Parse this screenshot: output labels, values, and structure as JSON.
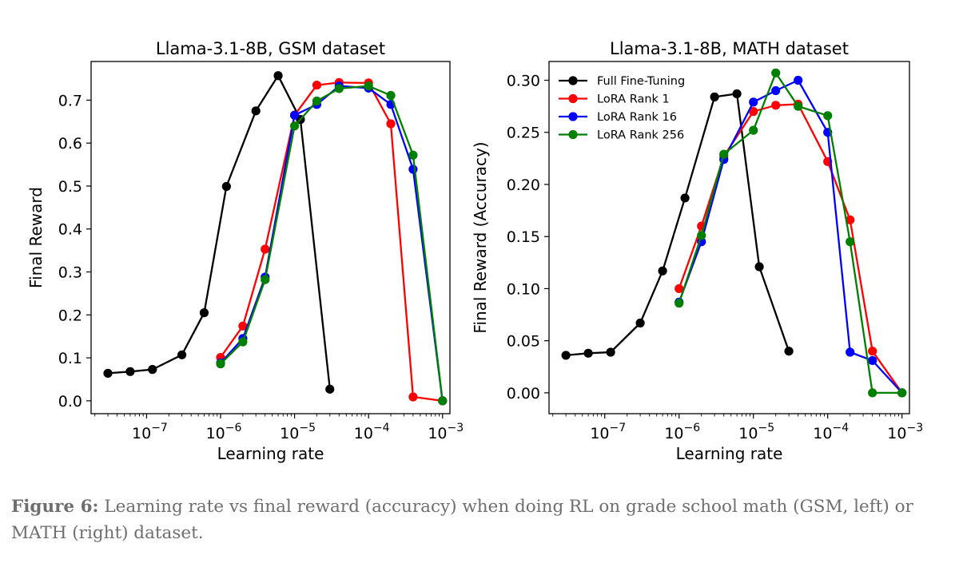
{
  "chart_data": [
    {
      "type": "line",
      "title": "Llama-3.1-8B, GSM dataset",
      "xlabel": "Learning rate",
      "ylabel": "Final Reward",
      "xscale": "log",
      "xlim_log10": [
        -7.75,
        -2.9
      ],
      "ylim": [
        -0.03,
        0.79
      ],
      "xticks": [
        {
          "exp": -7,
          "label": "10",
          "sup": "−7"
        },
        {
          "exp": -6,
          "label": "10",
          "sup": "−6"
        },
        {
          "exp": -5,
          "label": "10",
          "sup": "−5"
        },
        {
          "exp": -4,
          "label": "10",
          "sup": "−4"
        },
        {
          "exp": -3,
          "label": "10",
          "sup": "−3"
        }
      ],
      "yticks": [
        {
          "value": 0.0,
          "label": "0.0"
        },
        {
          "value": 0.1,
          "label": "0.1"
        },
        {
          "value": 0.2,
          "label": "0.2"
        },
        {
          "value": 0.3,
          "label": "0.3"
        },
        {
          "value": 0.4,
          "label": "0.4"
        },
        {
          "value": 0.5,
          "label": "0.5"
        },
        {
          "value": 0.6,
          "label": "0.6"
        },
        {
          "value": 0.7,
          "label": "0.7"
        }
      ],
      "series": [
        {
          "name": "Full Fine-Tuning",
          "color": "#000000",
          "x": [
            3e-08,
            6e-08,
            1.2e-07,
            3e-07,
            6e-07,
            1.2e-06,
            3e-06,
            6e-06,
            1.2e-05,
            3e-05
          ],
          "y": [
            0.064,
            0.068,
            0.073,
            0.107,
            0.205,
            0.499,
            0.675,
            0.757,
            0.655,
            0.027
          ]
        },
        {
          "name": "LoRA Rank 1",
          "color": "#ff0000",
          "x": [
            1e-06,
            2e-06,
            4e-06,
            1e-05,
            2e-05,
            4e-05,
            0.0001,
            0.0002,
            0.0004,
            0.001
          ],
          "y": [
            0.101,
            0.174,
            0.353,
            0.665,
            0.735,
            0.741,
            0.74,
            0.645,
            0.009,
            0.0
          ]
        },
        {
          "name": "LoRA Rank 16",
          "color": "#0000ff",
          "x": [
            1e-06,
            2e-06,
            4e-06,
            1e-05,
            2e-05,
            4e-05,
            0.0001,
            0.0002,
            0.0004,
            0.001
          ],
          "y": [
            0.088,
            0.145,
            0.288,
            0.665,
            0.69,
            0.733,
            0.728,
            0.69,
            0.539,
            0.0
          ]
        },
        {
          "name": "LoRA Rank 256",
          "color": "#008000",
          "x": [
            1e-06,
            2e-06,
            4e-06,
            1e-05,
            2e-05,
            4e-05,
            0.0001,
            0.0002,
            0.0004,
            0.001
          ],
          "y": [
            0.086,
            0.137,
            0.282,
            0.64,
            0.698,
            0.727,
            0.733,
            0.711,
            0.572,
            0.0
          ]
        }
      ]
    },
    {
      "type": "line",
      "title": "Llama-3.1-8B, MATH dataset",
      "xlabel": "Learning rate",
      "ylabel": "Final Reward (Accuracy)",
      "xscale": "log",
      "xlim_log10": [
        -7.75,
        -2.9
      ],
      "ylim": [
        -0.02,
        0.318
      ],
      "legend": "top-left",
      "xticks": [
        {
          "exp": -7,
          "label": "10",
          "sup": "−7"
        },
        {
          "exp": -6,
          "label": "10",
          "sup": "−6"
        },
        {
          "exp": -5,
          "label": "10",
          "sup": "−5"
        },
        {
          "exp": -4,
          "label": "10",
          "sup": "−4"
        },
        {
          "exp": -3,
          "label": "10",
          "sup": "−3"
        }
      ],
      "yticks": [
        {
          "value": 0.0,
          "label": "0.00"
        },
        {
          "value": 0.05,
          "label": "0.05"
        },
        {
          "value": 0.1,
          "label": "0.10"
        },
        {
          "value": 0.15,
          "label": "0.15"
        },
        {
          "value": 0.2,
          "label": "0.20"
        },
        {
          "value": 0.25,
          "label": "0.25"
        },
        {
          "value": 0.3,
          "label": "0.30"
        }
      ],
      "series": [
        {
          "name": "Full Fine-Tuning",
          "color": "#000000",
          "x": [
            3e-08,
            6e-08,
            1.2e-07,
            3e-07,
            6e-07,
            1.2e-06,
            3e-06,
            6e-06,
            1.2e-05,
            3e-05
          ],
          "y": [
            0.036,
            0.038,
            0.039,
            0.067,
            0.117,
            0.187,
            0.284,
            0.287,
            0.121,
            0.04
          ]
        },
        {
          "name": "LoRA Rank 1",
          "color": "#ff0000",
          "x": [
            1e-06,
            2e-06,
            4e-06,
            1e-05,
            2e-05,
            4e-05,
            0.0001,
            0.0002,
            0.0004,
            0.001
          ],
          "y": [
            0.1,
            0.16,
            0.227,
            0.27,
            0.276,
            0.277,
            0.222,
            0.166,
            0.04,
            0.0
          ]
        },
        {
          "name": "LoRA Rank 16",
          "color": "#0000ff",
          "x": [
            1e-06,
            2e-06,
            4e-06,
            1e-05,
            2e-05,
            4e-05,
            0.0001,
            0.0002,
            0.0004,
            0.001
          ],
          "y": [
            0.087,
            0.145,
            0.224,
            0.279,
            0.29,
            0.3,
            0.25,
            0.039,
            0.031,
            0.0
          ]
        },
        {
          "name": "LoRA Rank 256",
          "color": "#008000",
          "x": [
            1e-06,
            2e-06,
            4e-06,
            1e-05,
            2e-05,
            4e-05,
            0.0001,
            0.0002,
            0.0004,
            0.001
          ],
          "y": [
            0.086,
            0.151,
            0.229,
            0.252,
            0.307,
            0.275,
            0.266,
            0.145,
            0.0,
            0.0
          ]
        }
      ]
    }
  ],
  "caption": {
    "label": "Figure 6:",
    "text": "Learning rate vs final reward (accuracy) when doing RL on grade school math (GSM, left) or MATH (right) dataset."
  }
}
